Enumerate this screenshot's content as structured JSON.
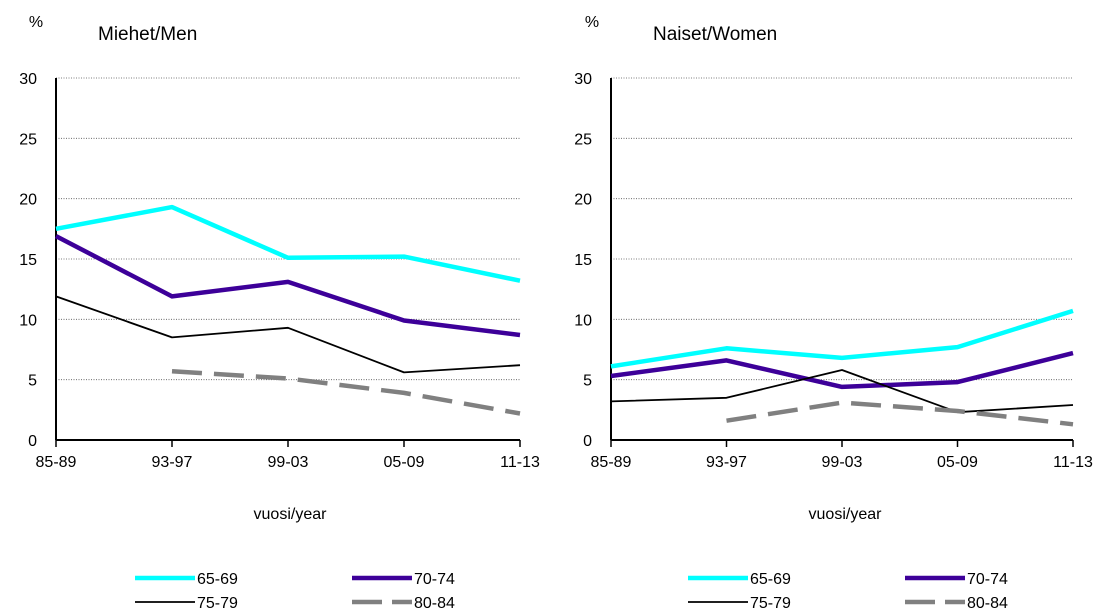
{
  "chart_data": [
    {
      "type": "line",
      "title": "Miehet/Men",
      "ylabel": "%",
      "xlabel": "vuosi/year",
      "categories": [
        "85-89",
        "93-97",
        "99-03",
        "05-09",
        "11-13"
      ],
      "ylim": [
        0,
        30
      ],
      "yticks": [
        0,
        5,
        10,
        15,
        20,
        25,
        30
      ],
      "grid": true,
      "legend_position": "bottom",
      "series": [
        {
          "name": "65-69",
          "color": "#00ffff",
          "style": "solid-thick",
          "values": [
            17.5,
            19.3,
            15.1,
            15.2,
            13.2
          ]
        },
        {
          "name": "70-74",
          "color": "#3d0099",
          "style": "solid-thick",
          "values": [
            16.9,
            11.9,
            13.1,
            9.9,
            8.7
          ]
        },
        {
          "name": "75-79",
          "color": "#000000",
          "style": "solid-thin",
          "values": [
            11.9,
            8.5,
            9.3,
            5.6,
            6.2
          ]
        },
        {
          "name": "80-84",
          "color": "#808080",
          "style": "dashed",
          "values": [
            null,
            5.7,
            5.1,
            3.9,
            2.2
          ]
        }
      ]
    },
    {
      "type": "line",
      "title": "Naiset/Women",
      "ylabel": "%",
      "xlabel": "vuosi/year",
      "categories": [
        "85-89",
        "93-97",
        "99-03",
        "05-09",
        "11-13"
      ],
      "ylim": [
        0,
        30
      ],
      "yticks": [
        0,
        5,
        10,
        15,
        20,
        25,
        30
      ],
      "grid": true,
      "legend_position": "bottom",
      "series": [
        {
          "name": "65-69",
          "color": "#00ffff",
          "style": "solid-thick",
          "values": [
            6.1,
            7.6,
            6.8,
            7.7,
            10.7
          ]
        },
        {
          "name": "70-74",
          "color": "#3d0099",
          "style": "solid-thick",
          "values": [
            5.3,
            6.6,
            4.4,
            4.8,
            7.2
          ]
        },
        {
          "name": "75-79",
          "color": "#000000",
          "style": "solid-thin",
          "values": [
            3.2,
            3.5,
            5.8,
            2.3,
            2.9
          ]
        },
        {
          "name": "80-84",
          "color": "#808080",
          "style": "dashed",
          "values": [
            null,
            1.6,
            3.1,
            2.4,
            1.3
          ]
        }
      ]
    }
  ]
}
